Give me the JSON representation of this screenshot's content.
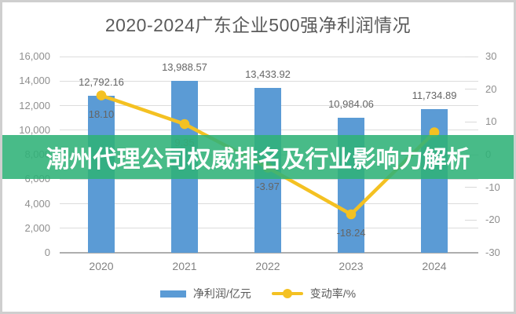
{
  "overlay_banner": {
    "text": "潮州代理公司权威排名及行业影响力解析",
    "background_rgba": "rgba(47,178,120,0.88)",
    "text_color": "#ffffff"
  },
  "chart_data": {
    "type": "bar",
    "subtype": "bar-line-combo",
    "title": "2020-2024广东企业500强净利润情况",
    "categories": [
      "2020",
      "2021",
      "2022",
      "2023",
      "2024"
    ],
    "series": [
      {
        "name": "净利润/亿元",
        "type": "bar",
        "axis": "left",
        "color": "#5B9BD5",
        "values": [
          12792.16,
          13988.57,
          13433.92,
          10984.06,
          11734.89
        ],
        "labels": [
          "12,792.16",
          "13,988.57",
          "13,433.92",
          "10,984.06",
          "11,734.89"
        ]
      },
      {
        "name": "变动率/%",
        "type": "line",
        "axis": "right",
        "color": "#F4C122",
        "values": [
          18.1,
          9.35,
          -3.97,
          -18.24,
          6.84
        ],
        "labels": [
          "18.10",
          "9.35",
          "-3.97",
          "-18.24",
          ""
        ]
      }
    ],
    "left_axis": {
      "min": 0,
      "max": 16000,
      "step": 2000,
      "tick_labels": [
        "0",
        "2,000",
        "4,000",
        "6,000",
        "8,000",
        "10,000",
        "12,000",
        "14,000",
        "16,000"
      ]
    },
    "right_axis": {
      "min": -30,
      "max": 30,
      "step": 10,
      "tick_labels": [
        "-30",
        "-20",
        "-10",
        "0",
        "10",
        "20",
        "30"
      ]
    },
    "legend_position": "bottom",
    "grid": true,
    "colors": {
      "grid": "#dcdcdc",
      "axis_line": "#aeaeae",
      "tick_text": "#8f8f8f",
      "data_label_text": "#656565",
      "title_text": "#5b5b5b"
    }
  }
}
